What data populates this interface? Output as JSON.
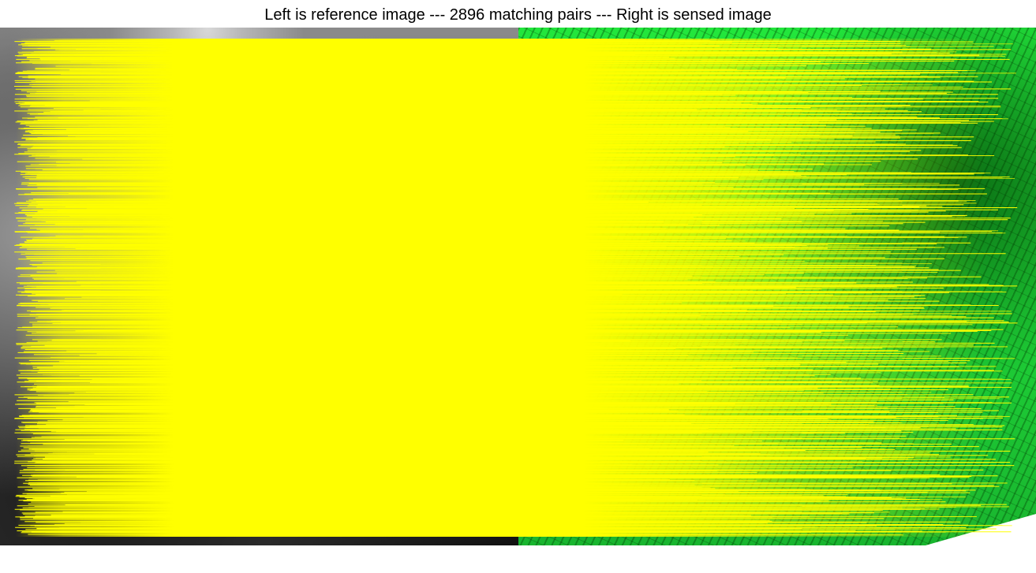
{
  "figure": {
    "title": "Left is reference image --- 2896 matching pairs --- Right is sensed image"
  },
  "panels": {
    "reference": {
      "label": ""
    },
    "sensed": {
      "label": ""
    }
  },
  "matches": {
    "count": 2896,
    "line_color": "#ffff00"
  },
  "colors": {
    "reference_tone": "#6b6b6b",
    "sensed_tone": "#1fd438",
    "match_line": "#ffff00"
  }
}
